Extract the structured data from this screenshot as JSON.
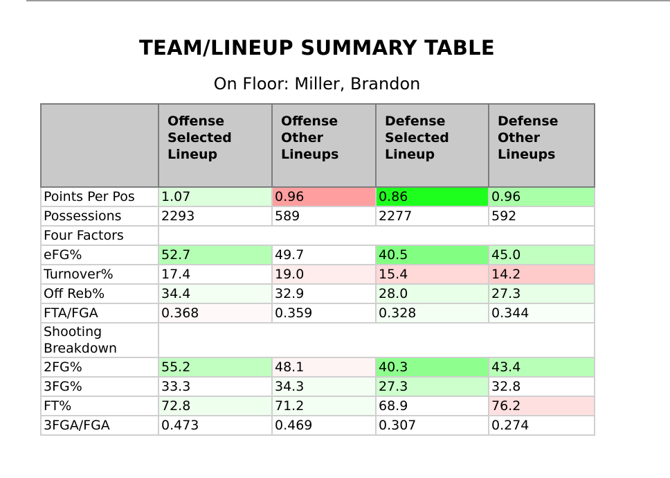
{
  "title": "TEAM/LINEUP SUMMARY TABLE",
  "subtitle": "On Floor: Miller, Brandon",
  "columns": [
    "",
    "Offense Selected Lineup",
    "Offense Other Lineups",
    "Defense Selected Lineup",
    "Defense Other Lineups"
  ],
  "column_lines": [
    [],
    [
      "Offense",
      "Selected",
      "Lineup"
    ],
    [
      "Offense",
      "Other",
      "Lineups"
    ],
    [
      "Defense",
      "Selected",
      "Lineup"
    ],
    [
      "Defense",
      "Other",
      "Lineups"
    ]
  ],
  "rows": [
    {
      "label": "Points Per Pos",
      "values": [
        "1.07",
        "0.96",
        "0.86",
        "0.96"
      ],
      "colors": [
        "#dcffdc",
        "#ff9e9e",
        "#1eff1e",
        "#a8ffa8"
      ]
    },
    {
      "label": "Possessions",
      "values": [
        "2293",
        "589",
        "2277",
        "592"
      ],
      "colors": [
        "#ffffff",
        "#ffffff",
        "#ffffff",
        "#ffffff"
      ]
    },
    {
      "label": "Four Factors",
      "section": true
    },
    {
      "label": "eFG%",
      "values": [
        "52.7",
        "49.7",
        "40.5",
        "45.0"
      ],
      "colors": [
        "#b4ffb4",
        "#ffffff",
        "#82ff82",
        "#c0ffc0"
      ]
    },
    {
      "label": "Turnover%",
      "values": [
        "17.4",
        "19.0",
        "15.4",
        "14.2"
      ],
      "colors": [
        "#ffffff",
        "#ffecec",
        "#ffd8d8",
        "#ffcaca"
      ]
    },
    {
      "label": "Off Reb%",
      "values": [
        "34.4",
        "32.9",
        "28.0",
        "27.3"
      ],
      "colors": [
        "#f2fff2",
        "#ffffff",
        "#e8ffe8",
        "#e6ffe6"
      ]
    },
    {
      "label": "FTA/FGA",
      "values": [
        "0.368",
        "0.359",
        "0.328",
        "0.344"
      ],
      "colors": [
        "#fff8f8",
        "#ffffff",
        "#f4fff4",
        "#f8fff8"
      ]
    },
    {
      "label": "Shooting Breakdown",
      "section": true,
      "lines": [
        "Shooting",
        "Breakdown"
      ]
    },
    {
      "label": "2FG%",
      "values": [
        "55.2",
        "48.1",
        "40.3",
        "43.4"
      ],
      "colors": [
        "#c0ffc0",
        "#fff4f4",
        "#8eff8e",
        "#b8ffb8"
      ]
    },
    {
      "label": "3FG%",
      "values": [
        "33.3",
        "34.3",
        "27.3",
        "32.8"
      ],
      "colors": [
        "#ffffff",
        "#f4fff4",
        "#ccffcc",
        "#ffffff"
      ]
    },
    {
      "label": "FT%",
      "values": [
        "72.8",
        "71.2",
        "68.9",
        "76.2"
      ],
      "colors": [
        "#eeffee",
        "#f4fff4",
        "#ffffff",
        "#ffe0e0"
      ]
    },
    {
      "label": "3FGA/FGA",
      "values": [
        "0.473",
        "0.469",
        "0.307",
        "0.274"
      ],
      "colors": [
        "#ffffff",
        "#ffffff",
        "#ffffff",
        "#ffffff"
      ]
    }
  ]
}
